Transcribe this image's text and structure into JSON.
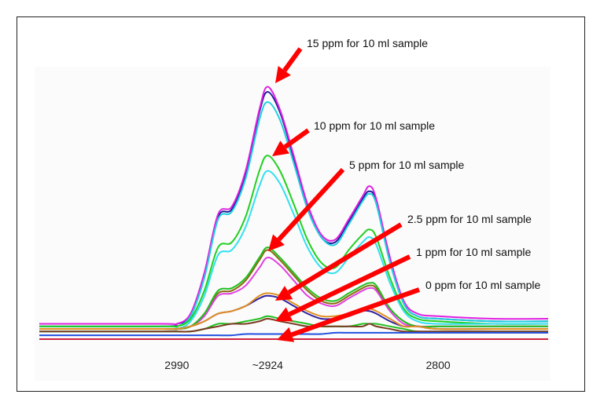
{
  "chart_data": {
    "type": "line",
    "title": "",
    "xlabel": "",
    "ylabel": "",
    "x_reversed": true,
    "xlim": [
      3090,
      2720
    ],
    "ylim": [
      0,
      1.05
    ],
    "grid": false,
    "x_ticks": [
      {
        "value": 2990,
        "label": "2990"
      },
      {
        "value": 2924,
        "label": "~2924"
      },
      {
        "value": 2800,
        "label": "2800"
      }
    ],
    "x": [
      3090,
      3000,
      2990,
      2980,
      2970,
      2960,
      2950,
      2940,
      2930,
      2924,
      2915,
      2905,
      2895,
      2885,
      2875,
      2865,
      2855,
      2850,
      2845,
      2835,
      2825,
      2815,
      2800,
      2760,
      2720
    ],
    "series": [
      {
        "level": "15 ppm",
        "color": "#1a1a9c",
        "values": [
          0.05,
          0.05,
          0.06,
          0.09,
          0.25,
          0.48,
          0.51,
          0.65,
          0.89,
          0.97,
          0.89,
          0.71,
          0.52,
          0.4,
          0.38,
          0.46,
          0.55,
          0.58,
          0.54,
          0.31,
          0.14,
          0.09,
          0.08,
          0.07,
          0.07
        ]
      },
      {
        "level": "15 ppm",
        "color": "#e020e0",
        "values": [
          0.06,
          0.06,
          0.06,
          0.1,
          0.26,
          0.49,
          0.52,
          0.66,
          0.9,
          0.99,
          0.9,
          0.72,
          0.53,
          0.41,
          0.39,
          0.47,
          0.56,
          0.6,
          0.55,
          0.32,
          0.15,
          0.1,
          0.09,
          0.08,
          0.08
        ]
      },
      {
        "level": "15 ppm",
        "color": "#20d0e0",
        "values": [
          0.05,
          0.05,
          0.05,
          0.09,
          0.24,
          0.47,
          0.5,
          0.63,
          0.86,
          0.93,
          0.86,
          0.69,
          0.51,
          0.4,
          0.37,
          0.45,
          0.54,
          0.57,
          0.53,
          0.3,
          0.14,
          0.09,
          0.08,
          0.07,
          0.07
        ]
      },
      {
        "level": "10 ppm",
        "color": "#20d020",
        "values": [
          0.05,
          0.05,
          0.05,
          0.08,
          0.19,
          0.36,
          0.38,
          0.48,
          0.66,
          0.72,
          0.66,
          0.53,
          0.39,
          0.3,
          0.28,
          0.35,
          0.41,
          0.43,
          0.4,
          0.24,
          0.12,
          0.08,
          0.07,
          0.06,
          0.06
        ]
      },
      {
        "level": "10 ppm",
        "color": "#30e0f0",
        "values": [
          0.04,
          0.04,
          0.04,
          0.07,
          0.17,
          0.33,
          0.35,
          0.44,
          0.6,
          0.66,
          0.61,
          0.49,
          0.36,
          0.28,
          0.26,
          0.32,
          0.38,
          0.4,
          0.37,
          0.22,
          0.11,
          0.07,
          0.06,
          0.06,
          0.06
        ]
      },
      {
        "level": "5 ppm",
        "color": "#8a6a10",
        "values": [
          0.04,
          0.04,
          0.04,
          0.05,
          0.1,
          0.18,
          0.19,
          0.23,
          0.31,
          0.35,
          0.31,
          0.25,
          0.19,
          0.15,
          0.14,
          0.17,
          0.2,
          0.21,
          0.2,
          0.12,
          0.07,
          0.05,
          0.05,
          0.05,
          0.05
        ]
      },
      {
        "level": "5 ppm",
        "color": "#e040e0",
        "values": [
          0.04,
          0.04,
          0.04,
          0.05,
          0.09,
          0.17,
          0.18,
          0.21,
          0.28,
          0.32,
          0.29,
          0.23,
          0.17,
          0.14,
          0.13,
          0.16,
          0.19,
          0.2,
          0.19,
          0.11,
          0.06,
          0.05,
          0.05,
          0.05,
          0.05
        ]
      },
      {
        "level": "5 ppm",
        "color": "#20c020",
        "values": [
          0.04,
          0.04,
          0.04,
          0.05,
          0.1,
          0.19,
          0.2,
          0.24,
          0.32,
          0.36,
          0.32,
          0.26,
          0.2,
          0.16,
          0.15,
          0.18,
          0.21,
          0.22,
          0.21,
          0.12,
          0.07,
          0.05,
          0.05,
          0.05,
          0.05
        ]
      },
      {
        "level": "2.5 ppm",
        "color": "#3020a0",
        "values": [
          0.04,
          0.04,
          0.04,
          0.05,
          0.07,
          0.1,
          0.11,
          0.13,
          0.16,
          0.17,
          0.16,
          0.13,
          0.1,
          0.08,
          0.08,
          0.09,
          0.11,
          0.11,
          0.1,
          0.07,
          0.05,
          0.05,
          0.04,
          0.04,
          0.04
        ]
      },
      {
        "level": "2.5 ppm",
        "color": "#e09020",
        "values": [
          0.04,
          0.04,
          0.04,
          0.05,
          0.07,
          0.1,
          0.11,
          0.13,
          0.17,
          0.18,
          0.17,
          0.14,
          0.11,
          0.09,
          0.09,
          0.1,
          0.12,
          0.12,
          0.11,
          0.08,
          0.05,
          0.05,
          0.04,
          0.04,
          0.04
        ]
      },
      {
        "level": "1 ppm",
        "color": "#20c020",
        "values": [
          0.03,
          0.03,
          0.03,
          0.03,
          0.04,
          0.06,
          0.06,
          0.07,
          0.08,
          0.09,
          0.08,
          0.07,
          0.06,
          0.05,
          0.05,
          0.05,
          0.06,
          0.06,
          0.06,
          0.05,
          0.04,
          0.03,
          0.03,
          0.03,
          0.03
        ]
      },
      {
        "level": "1 ppm",
        "color": "#7a3a20",
        "values": [
          0.03,
          0.03,
          0.03,
          0.03,
          0.04,
          0.05,
          0.06,
          0.06,
          0.07,
          0.08,
          0.07,
          0.06,
          0.05,
          0.05,
          0.05,
          0.05,
          0.05,
          0.06,
          0.05,
          0.04,
          0.03,
          0.03,
          0.03,
          0.03,
          0.03
        ]
      },
      {
        "level": "0 ppm",
        "color": "#2050e0",
        "values": [
          0.015,
          0.015,
          0.015,
          0.015,
          0.015,
          0.015,
          0.015,
          0.02,
          0.02,
          0.02,
          0.02,
          0.02,
          0.02,
          0.02,
          0.025,
          0.025,
          0.025,
          0.025,
          0.025,
          0.025,
          0.025,
          0.025,
          0.025,
          0.025,
          0.025
        ]
      },
      {
        "level": "0 ppm",
        "color": "#d02040",
        "values": [
          0.0,
          0.0,
          0.0,
          0.0,
          0.0,
          0.0,
          0.0,
          0.0,
          0.0,
          0.0,
          0.0,
          0.0,
          0.0,
          0.0,
          0.0,
          0.0,
          0.0,
          0.0,
          0.0,
          0.0,
          0.0,
          0.0,
          0.0,
          0.0,
          0.0
        ]
      }
    ],
    "annotations": [
      {
        "text": "15 ppm for 10 ml sample",
        "target_x": 2924
      },
      {
        "text": "10 ppm for 10 ml sample",
        "target_x": 2924
      },
      {
        "text": "5 ppm for 10 ml sample",
        "target_x": 2924
      },
      {
        "text": "2.5 ppm for 10 ml sample",
        "target_x": 2924
      },
      {
        "text": "1 ppm for 10 ml sample",
        "target_x": 2924
      },
      {
        "text": "0 ppm for 10 ml sample",
        "target_x": 2924
      }
    ],
    "arrow_color": "#ff0000"
  }
}
